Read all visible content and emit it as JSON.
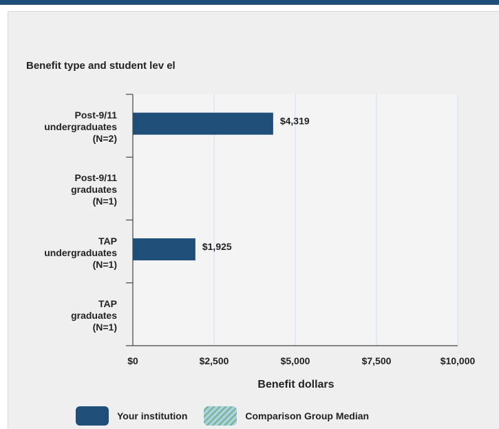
{
  "chart_data": {
    "type": "bar",
    "orientation": "horizontal",
    "ylabel": "Benefit type and student lev el",
    "xlabel": "Benefit dollars",
    "categories": [
      [
        "Post-9/11",
        "undergraduates",
        "(N=2)"
      ],
      [
        "Post-9/11",
        "graduates",
        "(N=1)"
      ],
      [
        "TAP",
        "undergraduates",
        "(N=1)"
      ],
      [
        "TAP",
        "graduates",
        "(N=1)"
      ]
    ],
    "series": [
      {
        "name": "Your institution",
        "color": "#1f4e79",
        "values": [
          4319,
          null,
          1925,
          null
        ],
        "labels": [
          "$4,319",
          "",
          "$1,925",
          ""
        ]
      }
    ],
    "xlim": [
      0,
      10000
    ],
    "xticks": [
      0,
      2500,
      5000,
      7500,
      10000
    ],
    "xtick_labels": [
      "$0",
      "$2,500",
      "$5,000",
      "$7,500",
      "$10,000"
    ],
    "grid": true,
    "legend": [
      "Your institution",
      "Comparison Group Median"
    ]
  },
  "legend": {
    "institution_label": "Your institution",
    "median_label": "Comparison Group Median"
  }
}
